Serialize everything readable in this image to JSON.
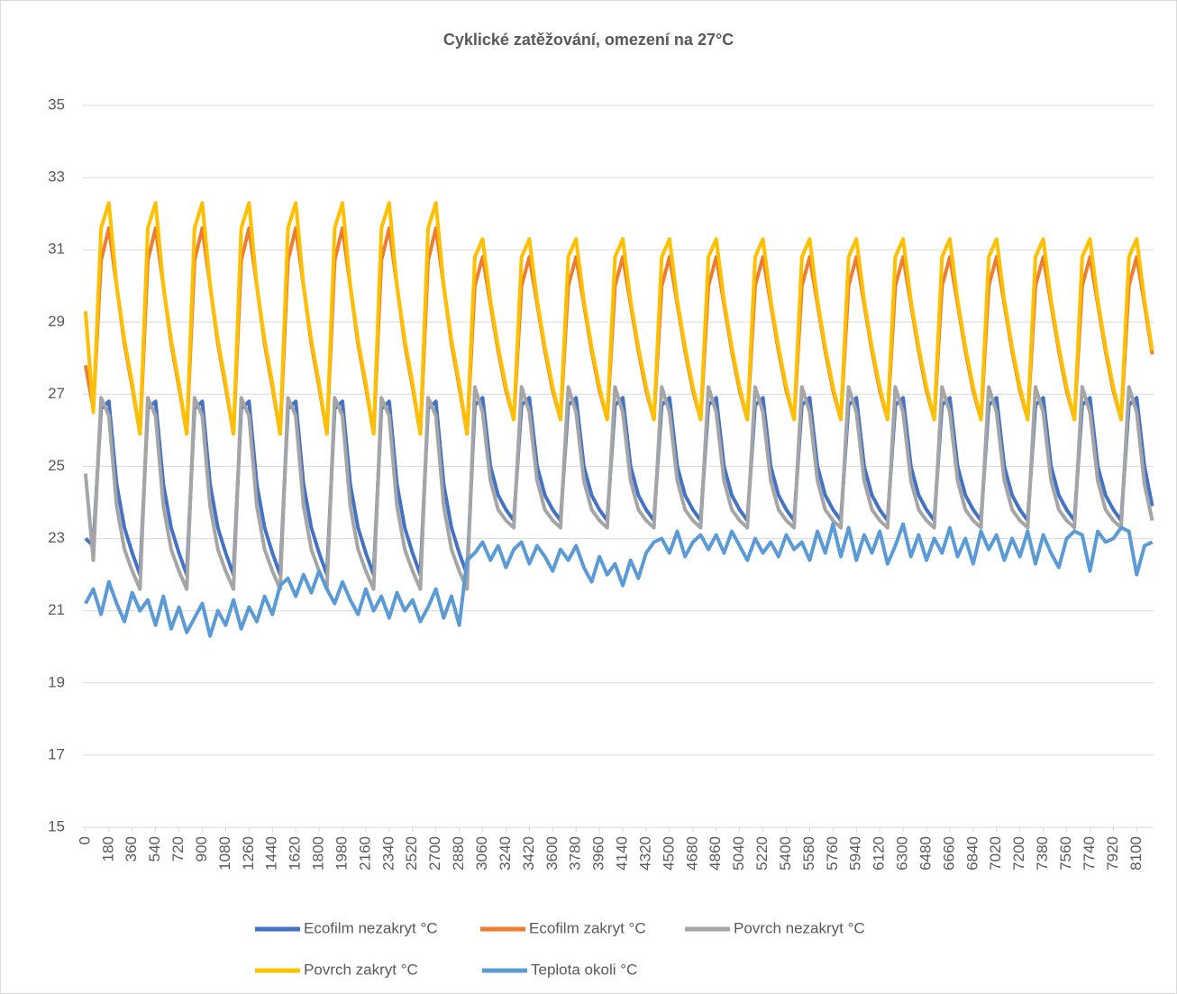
{
  "chart_data": {
    "type": "line",
    "title": "Cyklické zatěžování, omezení na 27°C",
    "x": [
      0,
      60,
      120,
      180,
      240,
      300,
      360,
      420,
      480,
      540,
      600,
      660,
      720,
      780,
      840,
      900,
      960,
      1020,
      1080,
      1140,
      1200,
      1260,
      1320,
      1380,
      1440,
      1500,
      1560,
      1620,
      1680,
      1740,
      1800,
      1860,
      1920,
      1980,
      2040,
      2100,
      2160,
      2220,
      2280,
      2340,
      2400,
      2460,
      2520,
      2580,
      2640,
      2700,
      2760,
      2820,
      2880,
      2940,
      3000,
      3060,
      3120,
      3180,
      3240,
      3300,
      3360,
      3420,
      3480,
      3540,
      3600,
      3660,
      3720,
      3780,
      3840,
      3900,
      3960,
      4020,
      4080,
      4140,
      4200,
      4260,
      4320,
      4380,
      4440,
      4500,
      4560,
      4620,
      4680,
      4740,
      4800,
      4860,
      4920,
      4980,
      5040,
      5100,
      5160,
      5220,
      5280,
      5340,
      5400,
      5460,
      5520,
      5580,
      5640,
      5700,
      5760,
      5820,
      5880,
      5940,
      6000,
      6060,
      6120,
      6180,
      6240,
      6300,
      6360,
      6420,
      6480,
      6540,
      6600,
      6660,
      6720,
      6780,
      6840,
      6900,
      6960,
      7020,
      7080,
      7140,
      7200,
      7260,
      7320,
      7380,
      7440,
      7500,
      7560,
      7620,
      7680,
      7740,
      7800,
      7860,
      7920,
      7980,
      8040,
      8100,
      8160,
      8220
    ],
    "series": [
      {
        "name": "Ecofilm nezakryt °C",
        "color": "#4472c4",
        "values": [
          23.0,
          22.8,
          26.6,
          26.8,
          24.5,
          23.3,
          22.6,
          22.0,
          26.6,
          26.8,
          24.5,
          23.3,
          22.6,
          22.0,
          26.6,
          26.8,
          24.5,
          23.3,
          22.6,
          22.0,
          26.6,
          26.8,
          24.5,
          23.3,
          22.6,
          22.0,
          26.6,
          26.8,
          24.5,
          23.3,
          22.6,
          22.0,
          26.6,
          26.8,
          24.5,
          23.3,
          22.6,
          22.0,
          26.6,
          26.8,
          24.5,
          23.3,
          22.6,
          22.0,
          26.6,
          26.8,
          24.5,
          23.3,
          22.6,
          22.0,
          26.7,
          26.9,
          25.0,
          24.2,
          23.8,
          23.5,
          26.7,
          26.9,
          25.0,
          24.2,
          23.8,
          23.5,
          26.7,
          26.9,
          25.0,
          24.2,
          23.8,
          23.5,
          26.7,
          26.9,
          25.0,
          24.2,
          23.8,
          23.5,
          26.7,
          26.9,
          25.0,
          24.2,
          23.8,
          23.5,
          26.7,
          26.9,
          25.0,
          24.2,
          23.8,
          23.5,
          26.7,
          26.9,
          25.0,
          24.2,
          23.8,
          23.5,
          26.7,
          26.9,
          25.0,
          24.2,
          23.8,
          23.5,
          26.7,
          26.9,
          25.0,
          24.2,
          23.8,
          23.5,
          26.7,
          26.9,
          25.0,
          24.2,
          23.8,
          23.5,
          26.7,
          26.9,
          25.0,
          24.2,
          23.8,
          23.5,
          26.7,
          26.9,
          25.0,
          24.2,
          23.8,
          23.5,
          26.7,
          26.9,
          25.0,
          24.2,
          23.8,
          23.5,
          26.7,
          26.9,
          25.0,
          24.2,
          23.8,
          23.5,
          26.7,
          26.9,
          25.0,
          23.9
        ]
      },
      {
        "name": "Ecofilm zakryt °C",
        "color": "#ed7d31",
        "values": [
          27.8,
          26.6,
          30.7,
          31.6,
          30.0,
          28.4,
          27.2,
          25.9,
          30.7,
          31.6,
          30.0,
          28.4,
          27.2,
          25.9,
          30.7,
          31.6,
          30.0,
          28.4,
          27.2,
          25.9,
          30.7,
          31.6,
          30.0,
          28.4,
          27.2,
          25.9,
          30.7,
          31.6,
          30.0,
          28.4,
          27.2,
          25.9,
          30.7,
          31.6,
          30.0,
          28.4,
          27.2,
          25.9,
          30.7,
          31.6,
          30.0,
          28.4,
          27.2,
          25.9,
          30.7,
          31.6,
          30.0,
          28.4,
          27.2,
          25.9,
          30.0,
          30.8,
          29.5,
          28.2,
          27.1,
          26.3,
          30.0,
          30.8,
          29.5,
          28.2,
          27.1,
          26.3,
          30.0,
          30.8,
          29.5,
          28.2,
          27.1,
          26.3,
          30.0,
          30.8,
          29.5,
          28.2,
          27.1,
          26.3,
          30.0,
          30.8,
          29.5,
          28.2,
          27.1,
          26.3,
          30.0,
          30.8,
          29.5,
          28.2,
          27.1,
          26.3,
          30.0,
          30.8,
          29.5,
          28.2,
          27.1,
          26.3,
          30.0,
          30.8,
          29.5,
          28.2,
          27.1,
          26.3,
          30.0,
          30.8,
          29.5,
          28.2,
          27.1,
          26.3,
          30.0,
          30.8,
          29.5,
          28.2,
          27.1,
          26.3,
          30.0,
          30.8,
          29.5,
          28.2,
          27.1,
          26.3,
          30.0,
          30.8,
          29.5,
          28.2,
          27.1,
          26.3,
          30.0,
          30.8,
          29.5,
          28.2,
          27.1,
          26.3,
          30.0,
          30.8,
          29.5,
          28.2,
          27.1,
          26.3,
          30.0,
          30.8,
          29.5,
          28.1
        ]
      },
      {
        "name": "Povrch nezakryt °C",
        "color": "#a5a5a5",
        "values": [
          24.8,
          22.4,
          26.9,
          26.4,
          23.9,
          22.7,
          22.1,
          21.6,
          26.9,
          26.4,
          23.9,
          22.7,
          22.1,
          21.6,
          26.9,
          26.4,
          23.9,
          22.7,
          22.1,
          21.6,
          26.9,
          26.4,
          23.9,
          22.7,
          22.1,
          21.6,
          26.9,
          26.4,
          23.9,
          22.7,
          22.1,
          21.6,
          26.9,
          26.4,
          23.9,
          22.7,
          22.1,
          21.6,
          26.9,
          26.4,
          23.9,
          22.7,
          22.1,
          21.6,
          26.9,
          26.4,
          23.9,
          22.7,
          22.1,
          21.6,
          27.2,
          26.5,
          24.6,
          23.8,
          23.5,
          23.3,
          27.2,
          26.5,
          24.6,
          23.8,
          23.5,
          23.3,
          27.2,
          26.5,
          24.6,
          23.8,
          23.5,
          23.3,
          27.2,
          26.5,
          24.6,
          23.8,
          23.5,
          23.3,
          27.2,
          26.5,
          24.6,
          23.8,
          23.5,
          23.3,
          27.2,
          26.5,
          24.6,
          23.8,
          23.5,
          23.3,
          27.2,
          26.5,
          24.6,
          23.8,
          23.5,
          23.3,
          27.2,
          26.5,
          24.6,
          23.8,
          23.5,
          23.3,
          27.2,
          26.5,
          24.6,
          23.8,
          23.5,
          23.3,
          27.2,
          26.5,
          24.6,
          23.8,
          23.5,
          23.3,
          27.2,
          26.5,
          24.6,
          23.8,
          23.5,
          23.3,
          27.2,
          26.5,
          24.6,
          23.8,
          23.5,
          23.3,
          27.2,
          26.5,
          24.6,
          23.8,
          23.5,
          23.3,
          27.2,
          26.5,
          24.6,
          23.8,
          23.5,
          23.3,
          27.2,
          26.5,
          24.5,
          23.5
        ]
      },
      {
        "name": "Povrch zakryt °C",
        "color": "#ffc000",
        "values": [
          29.3,
          26.5,
          31.6,
          32.3,
          30.0,
          28.5,
          27.3,
          25.9,
          31.6,
          32.3,
          30.0,
          28.5,
          27.3,
          25.9,
          31.6,
          32.3,
          30.0,
          28.5,
          27.3,
          25.9,
          31.6,
          32.3,
          30.0,
          28.5,
          27.3,
          25.9,
          31.6,
          32.3,
          30.0,
          28.5,
          27.3,
          25.9,
          31.6,
          32.3,
          30.0,
          28.5,
          27.3,
          25.9,
          31.6,
          32.3,
          30.0,
          28.5,
          27.3,
          25.9,
          31.6,
          32.3,
          30.0,
          28.5,
          27.3,
          25.9,
          30.8,
          31.3,
          29.6,
          28.3,
          27.2,
          26.3,
          30.8,
          31.3,
          29.6,
          28.3,
          27.2,
          26.3,
          30.8,
          31.3,
          29.6,
          28.3,
          27.2,
          26.3,
          30.8,
          31.3,
          29.6,
          28.3,
          27.2,
          26.3,
          30.8,
          31.3,
          29.6,
          28.3,
          27.2,
          26.3,
          30.8,
          31.3,
          29.6,
          28.3,
          27.2,
          26.3,
          30.8,
          31.3,
          29.6,
          28.3,
          27.2,
          26.3,
          30.8,
          31.3,
          29.6,
          28.3,
          27.2,
          26.3,
          30.8,
          31.3,
          29.6,
          28.3,
          27.2,
          26.3,
          30.8,
          31.3,
          29.6,
          28.3,
          27.2,
          26.3,
          30.8,
          31.3,
          29.6,
          28.3,
          27.2,
          26.3,
          30.8,
          31.3,
          29.6,
          28.3,
          27.2,
          26.3,
          30.8,
          31.3,
          29.6,
          28.3,
          27.2,
          26.3,
          30.8,
          31.3,
          29.6,
          28.3,
          27.2,
          26.3,
          30.8,
          31.3,
          29.6,
          28.2
        ]
      },
      {
        "name": "Teplota okoli °C",
        "color": "#5b9bd5",
        "values": [
          21.2,
          21.6,
          20.9,
          21.8,
          21.2,
          20.7,
          21.5,
          21.0,
          21.3,
          20.6,
          21.4,
          20.5,
          21.1,
          20.4,
          20.8,
          21.2,
          20.3,
          21.0,
          20.6,
          21.3,
          20.5,
          21.1,
          20.7,
          21.4,
          20.9,
          21.7,
          21.9,
          21.4,
          22.0,
          21.5,
          22.1,
          21.6,
          21.2,
          21.8,
          21.3,
          20.9,
          21.6,
          21.0,
          21.4,
          20.8,
          21.5,
          21.0,
          21.3,
          20.7,
          21.1,
          21.6,
          20.8,
          21.4,
          20.6,
          22.4,
          22.6,
          22.9,
          22.4,
          22.8,
          22.2,
          22.7,
          22.9,
          22.3,
          22.8,
          22.5,
          22.1,
          22.7,
          22.4,
          22.8,
          22.2,
          21.8,
          22.5,
          22.0,
          22.3,
          21.7,
          22.4,
          21.9,
          22.6,
          22.9,
          23.0,
          22.6,
          23.2,
          22.5,
          22.9,
          23.1,
          22.7,
          23.1,
          22.6,
          23.2,
          22.8,
          22.4,
          23.0,
          22.6,
          22.9,
          22.5,
          23.1,
          22.7,
          22.9,
          22.4,
          23.2,
          22.6,
          23.4,
          22.5,
          23.3,
          22.4,
          23.1,
          22.6,
          23.2,
          22.3,
          22.8,
          23.4,
          22.5,
          23.1,
          22.4,
          23.0,
          22.6,
          23.3,
          22.5,
          23.0,
          22.3,
          23.2,
          22.7,
          23.1,
          22.4,
          23.0,
          22.5,
          23.2,
          22.3,
          23.1,
          22.6,
          22.2,
          23.0,
          23.2,
          23.1,
          22.1,
          23.2,
          22.9,
          23.0,
          23.3,
          23.2,
          22.0,
          22.8,
          22.9
        ]
      }
    ],
    "xlim": [
      -20,
      8230
    ],
    "ylim": [
      15,
      35
    ],
    "xticks": [
      0,
      180,
      360,
      540,
      720,
      900,
      1080,
      1260,
      1440,
      1620,
      1800,
      1980,
      2160,
      2340,
      2520,
      2700,
      2880,
      3060,
      3240,
      3420,
      3600,
      3780,
      3960,
      4140,
      4320,
      4500,
      4680,
      4860,
      5040,
      5220,
      5400,
      5580,
      5760,
      5940,
      6120,
      6300,
      6480,
      6660,
      6840,
      7020,
      7200,
      7380,
      7560,
      7740,
      7920,
      8100
    ],
    "yticks": [
      15,
      17,
      19,
      21,
      23,
      25,
      27,
      29,
      31,
      33,
      35
    ],
    "grid": true,
    "legend": "bottom"
  }
}
